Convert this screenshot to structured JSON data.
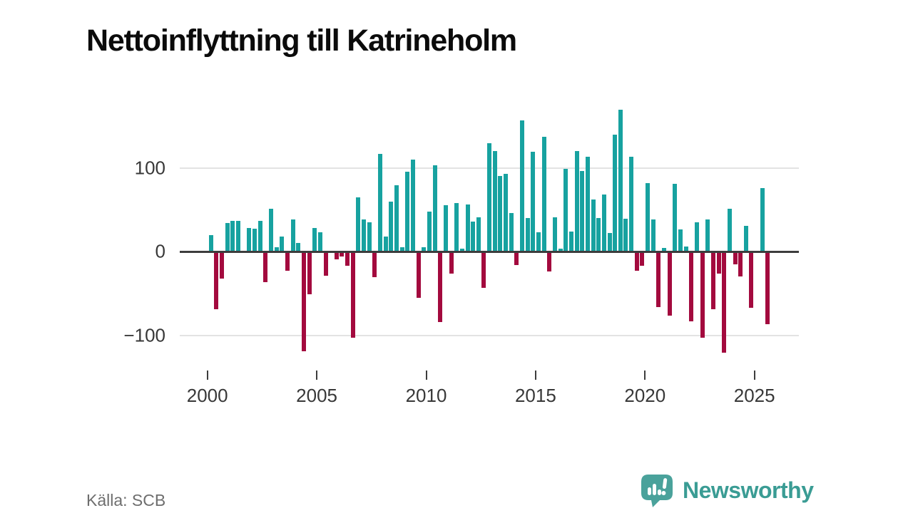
{
  "page": {
    "title": "Nettoinflyttning till Katrineholm",
    "source_label": "Källa: SCB"
  },
  "brand": {
    "name": "Newsworthy",
    "icon": "newsworthy-speech-bubble-chart-icon",
    "text_color": "#3a9c94",
    "icon_color": "#4aa29b"
  },
  "colors": {
    "positive_bar": "#17a2a0",
    "negative_bar": "#a30a3e",
    "axis": "#3d3d3d",
    "gridline": "#e3e3e3",
    "tick_text": "#383838",
    "source_text": "#6e6e6e",
    "title_text": "#0b0b0b"
  },
  "chart_data": {
    "type": "bar",
    "title": "Nettoinflyttning till Katrineholm",
    "frequency": "quarterly",
    "x_range": [
      "2000 Q1",
      "2025 Q3"
    ],
    "x_tick_labels": [
      "2000",
      "2005",
      "2010",
      "2015",
      "2020",
      "2025"
    ],
    "y_ticks": [
      100,
      0,
      -100
    ],
    "y_tick_labels": [
      "100",
      "0",
      "−100"
    ],
    "ylim": [
      -130,
      180
    ],
    "grid": "horizontal",
    "legend": false,
    "points": [
      [
        "2000Q1",
        20
      ],
      [
        "2000Q2",
        -69
      ],
      [
        "2000Q3",
        -32
      ],
      [
        "2000Q4",
        34
      ],
      [
        "2001Q1",
        37
      ],
      [
        "2001Q2",
        37
      ],
      [
        "2001Q3",
        0
      ],
      [
        "2001Q4",
        28
      ],
      [
        "2002Q1",
        27
      ],
      [
        "2002Q2",
        37
      ],
      [
        "2002Q3",
        -37
      ],
      [
        "2002Q4",
        51
      ],
      [
        "2003Q1",
        5
      ],
      [
        "2003Q2",
        18
      ],
      [
        "2003Q3",
        -23
      ],
      [
        "2003Q4",
        38
      ],
      [
        "2004Q1",
        10
      ],
      [
        "2004Q2",
        -119
      ],
      [
        "2004Q3",
        -51
      ],
      [
        "2004Q4",
        28
      ],
      [
        "2005Q1",
        23
      ],
      [
        "2005Q2",
        -29
      ],
      [
        "2005Q3",
        0
      ],
      [
        "2005Q4",
        -9
      ],
      [
        "2006Q1",
        -6
      ],
      [
        "2006Q2",
        -17
      ],
      [
        "2006Q3",
        -103
      ],
      [
        "2006Q4",
        65
      ],
      [
        "2007Q1",
        38
      ],
      [
        "2007Q2",
        35
      ],
      [
        "2007Q3",
        -31
      ],
      [
        "2007Q4",
        117
      ],
      [
        "2008Q1",
        18
      ],
      [
        "2008Q2",
        60
      ],
      [
        "2008Q3",
        79
      ],
      [
        "2008Q4",
        5
      ],
      [
        "2009Q1",
        95
      ],
      [
        "2009Q2",
        110
      ],
      [
        "2009Q3",
        -55
      ],
      [
        "2009Q4",
        5
      ],
      [
        "2010Q1",
        48
      ],
      [
        "2010Q2",
        103
      ],
      [
        "2010Q3",
        -84
      ],
      [
        "2010Q4",
        55
      ],
      [
        "2011Q1",
        -26
      ],
      [
        "2011Q2",
        58
      ],
      [
        "2011Q3",
        3
      ],
      [
        "2011Q4",
        56
      ],
      [
        "2012Q1",
        36
      ],
      [
        "2012Q2",
        41
      ],
      [
        "2012Q3",
        -43
      ],
      [
        "2012Q4",
        129
      ],
      [
        "2013Q1",
        120
      ],
      [
        "2013Q2",
        90
      ],
      [
        "2013Q3",
        93
      ],
      [
        "2013Q4",
        46
      ],
      [
        "2014Q1",
        -16
      ],
      [
        "2014Q2",
        157
      ],
      [
        "2014Q3",
        40
      ],
      [
        "2014Q4",
        119
      ],
      [
        "2015Q1",
        23
      ],
      [
        "2015Q2",
        137
      ],
      [
        "2015Q3",
        -24
      ],
      [
        "2015Q4",
        41
      ],
      [
        "2016Q1",
        3
      ],
      [
        "2016Q2",
        99
      ],
      [
        "2016Q3",
        24
      ],
      [
        "2016Q4",
        120
      ],
      [
        "2017Q1",
        96
      ],
      [
        "2017Q2",
        113
      ],
      [
        "2017Q3",
        62
      ],
      [
        "2017Q4",
        40
      ],
      [
        "2018Q1",
        68
      ],
      [
        "2018Q2",
        22
      ],
      [
        "2018Q3",
        140
      ],
      [
        "2018Q4",
        169
      ],
      [
        "2019Q1",
        39
      ],
      [
        "2019Q2",
        113
      ],
      [
        "2019Q3",
        -23
      ],
      [
        "2019Q4",
        -17
      ],
      [
        "2020Q1",
        82
      ],
      [
        "2020Q2",
        38
      ],
      [
        "2020Q3",
        -66
      ],
      [
        "2020Q4",
        4
      ],
      [
        "2021Q1",
        -77
      ],
      [
        "2021Q2",
        81
      ],
      [
        "2021Q3",
        26
      ],
      [
        "2021Q4",
        6
      ],
      [
        "2022Q1",
        -83
      ],
      [
        "2022Q2",
        35
      ],
      [
        "2022Q3",
        -103
      ],
      [
        "2022Q4",
        38
      ],
      [
        "2023Q1",
        -69
      ],
      [
        "2023Q2",
        -26
      ],
      [
        "2023Q3",
        -121
      ],
      [
        "2023Q4",
        51
      ],
      [
        "2024Q1",
        -15
      ],
      [
        "2024Q2",
        -30
      ],
      [
        "2024Q3",
        31
      ],
      [
        "2024Q4",
        -67
      ],
      [
        "2025Q1",
        0
      ],
      [
        "2025Q2",
        76
      ],
      [
        "2025Q3",
        -87
      ]
    ]
  }
}
